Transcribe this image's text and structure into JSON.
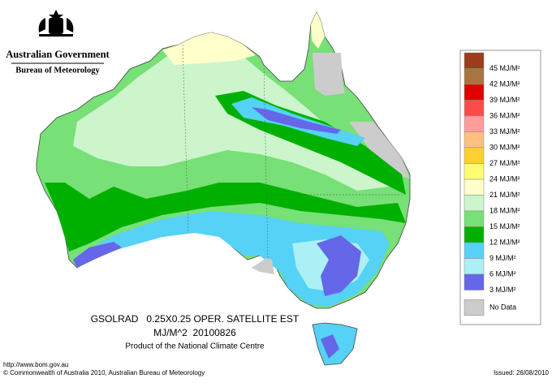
{
  "header": {
    "government": "Australian Government",
    "bureau": "Bureau of Meteorology"
  },
  "legend": {
    "items": [
      {
        "label": "45 MJ/M²",
        "color": "#993d1a"
      },
      {
        "label": "42 MJ/M²",
        "color": "#a8743f"
      },
      {
        "label": "39 MJ/M²",
        "color": "#e00000"
      },
      {
        "label": "36 MJ/M²",
        "color": "#ff4a4a"
      },
      {
        "label": "33 MJ/M²",
        "color": "#ff9c9c"
      },
      {
        "label": "30 MJ/M²",
        "color": "#ffc080"
      },
      {
        "label": "27 MJ/M²",
        "color": "#ffd030"
      },
      {
        "label": "24 MJ/M²",
        "color": "#ffff70"
      },
      {
        "label": "21 MJ/M²",
        "color": "#ffffcc"
      },
      {
        "label": "18 MJ/M²",
        "color": "#ccf5cc"
      },
      {
        "label": "15 MJ/M²",
        "color": "#77e077"
      },
      {
        "label": "12 MJ/M²",
        "color": "#00b000"
      },
      {
        "label": "9 MJ/M²",
        "color": "#55d2f5"
      },
      {
        "label": "6 MJ/M²",
        "color": "#aaf0f5"
      },
      {
        "label": "3 MJ/M²",
        "color": "#6666e8"
      }
    ],
    "no_data": {
      "label": "No Data",
      "color": "#cccccc"
    }
  },
  "caption": {
    "line1": "GSOLRAD   0.25X0.25 OPER. SATELLITE EST",
    "line2": "MJ/M^2  20100826",
    "line3": "Product of the National Climate Centre"
  },
  "footer": {
    "url": "http://www.bom.gov.au",
    "copyright": "© Commonwealth of Australia 2010, Australian Bureau of Meteorology",
    "issued": "Issued: 26/08/2010"
  }
}
